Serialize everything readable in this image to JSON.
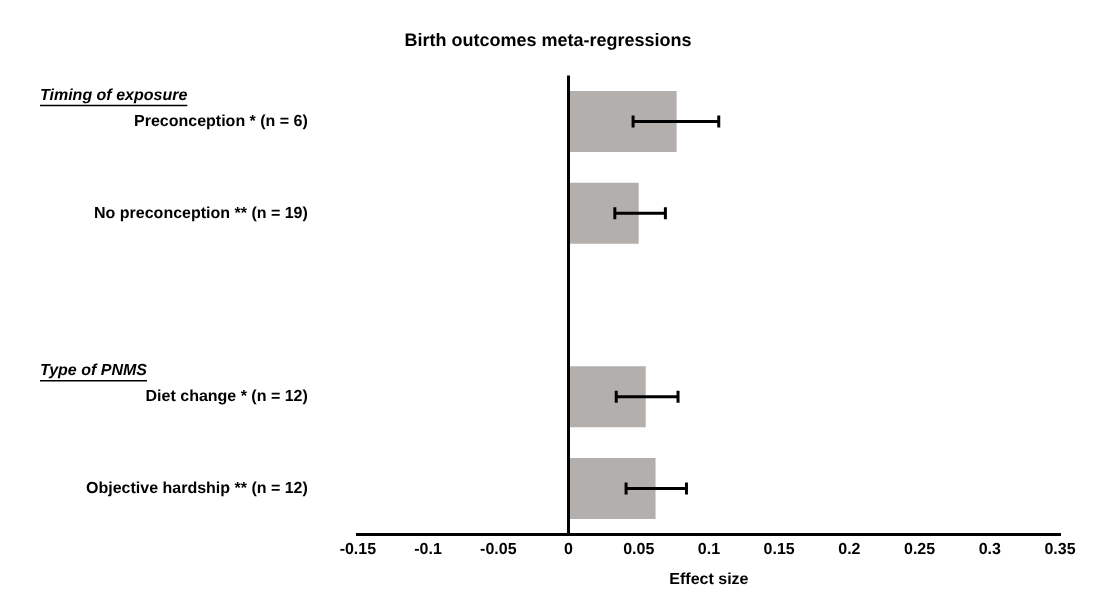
{
  "chart_data": {
    "type": "bar",
    "orientation": "horizontal",
    "title": "Birth outcomes meta-regressions",
    "xlabel": "Effect size",
    "categories": [
      "Preconception * (n = 6)",
      "No preconception ** (n = 19)",
      null,
      "Diet change * (n = 12)",
      "Objective hardship ** (n = 12)"
    ],
    "values": [
      0.077,
      0.05,
      null,
      0.055,
      0.062
    ],
    "errors": [
      [
        0.046,
        0.107
      ],
      [
        0.033,
        0.069
      ],
      null,
      [
        0.034,
        0.078
      ],
      [
        0.041,
        0.084
      ]
    ],
    "color": "#b3afad",
    "xlim": [
      -0.15,
      0.35
    ],
    "xticks": [
      -0.15,
      -0.1,
      -0.05,
      0,
      0.05,
      0.1,
      0.15,
      0.2,
      0.25,
      0.3,
      0.35
    ],
    "annotations": [
      "Timing of exposure",
      "Type of PNMS"
    ],
    "ref_lines": [
      {
        "axis": "x",
        "value": 0,
        "color": "#000000"
      }
    ],
    "grid": false,
    "legend": false
  }
}
